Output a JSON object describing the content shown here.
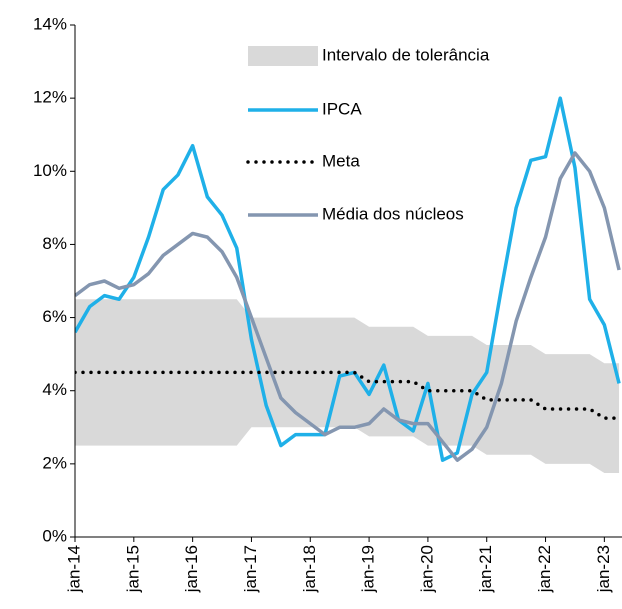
{
  "chart_data": {
    "type": "line",
    "x": [
      2014,
      2014.25,
      2014.5,
      2014.75,
      2015,
      2015.25,
      2015.5,
      2015.75,
      2016,
      2016.25,
      2016.5,
      2016.75,
      2017,
      2017.25,
      2017.5,
      2017.75,
      2018,
      2018.25,
      2018.5,
      2018.75,
      2019,
      2019.25,
      2019.5,
      2019.75,
      2020,
      2020.25,
      2020.5,
      2020.75,
      2021,
      2021.25,
      2021.5,
      2021.75,
      2022,
      2022.25,
      2022.5,
      2022.75,
      2023,
      2023.25
    ],
    "band": {
      "name": "Intervalo de tolerância",
      "color": "#d9d9d9",
      "low": [
        2.5,
        2.5,
        2.5,
        2.5,
        2.5,
        2.5,
        2.5,
        2.5,
        2.5,
        2.5,
        2.5,
        2.5,
        3,
        3,
        3,
        3,
        3,
        3,
        3,
        3,
        2.75,
        2.75,
        2.75,
        2.75,
        2.5,
        2.5,
        2.5,
        2.5,
        2.25,
        2.25,
        2.25,
        2.25,
        2,
        2,
        2,
        2,
        1.75,
        1.75
      ],
      "high": [
        6.5,
        6.5,
        6.5,
        6.5,
        6.5,
        6.5,
        6.5,
        6.5,
        6.5,
        6.5,
        6.5,
        6.5,
        6,
        6,
        6,
        6,
        6,
        6,
        6,
        6,
        5.75,
        5.75,
        5.75,
        5.75,
        5.5,
        5.5,
        5.5,
        5.5,
        5.25,
        5.25,
        5.25,
        5.25,
        5,
        5,
        5,
        5,
        4.75,
        4.75
      ]
    },
    "series": [
      {
        "name": "IPCA",
        "color": "#1fb0e8",
        "style": "solid",
        "values": [
          5.6,
          6.3,
          6.6,
          6.5,
          7.1,
          8.2,
          9.5,
          9.9,
          10.7,
          9.3,
          8.8,
          7.9,
          5.4,
          3.6,
          2.5,
          2.8,
          2.8,
          2.8,
          4.4,
          4.5,
          3.9,
          4.7,
          3.2,
          2.9,
          4.2,
          2.1,
          2.3,
          3.9,
          4.5,
          6.8,
          9.0,
          10.3,
          10.4,
          12.0,
          10.1,
          6.5,
          5.8,
          4.2
        ]
      },
      {
        "name": "Meta",
        "color": "#000000",
        "style": "dotted",
        "values": [
          4.5,
          4.5,
          4.5,
          4.5,
          4.5,
          4.5,
          4.5,
          4.5,
          4.5,
          4.5,
          4.5,
          4.5,
          4.5,
          4.5,
          4.5,
          4.5,
          4.5,
          4.5,
          4.5,
          4.5,
          4.25,
          4.25,
          4.25,
          4.25,
          4,
          4,
          4,
          4,
          3.75,
          3.75,
          3.75,
          3.75,
          3.5,
          3.5,
          3.5,
          3.5,
          3.25,
          3.25
        ]
      },
      {
        "name": "Média dos núcleos",
        "color": "#8496b0",
        "style": "solid",
        "values": [
          6.6,
          6.9,
          7.0,
          6.8,
          6.9,
          7.2,
          7.7,
          8.0,
          8.3,
          8.2,
          7.8,
          7.1,
          6.0,
          4.9,
          3.8,
          3.4,
          3.1,
          2.8,
          3.0,
          3.0,
          3.1,
          3.5,
          3.2,
          3.1,
          3.1,
          2.6,
          2.1,
          2.4,
          3.0,
          4.2,
          5.9,
          7.1,
          8.2,
          9.8,
          10.5,
          10.0,
          9.0,
          7.3
        ]
      }
    ],
    "xlim": [
      2014,
      2023.3
    ],
    "xticks": [
      {
        "value": 2014,
        "label": "jan-14"
      },
      {
        "value": 2015,
        "label": "jan-15"
      },
      {
        "value": 2016,
        "label": "jan-16"
      },
      {
        "value": 2017,
        "label": "jan-17"
      },
      {
        "value": 2018,
        "label": "jan-18"
      },
      {
        "value": 2019,
        "label": "jan-19"
      },
      {
        "value": 2020,
        "label": "jan-20"
      },
      {
        "value": 2021,
        "label": "jan-21"
      },
      {
        "value": 2022,
        "label": "jan-22"
      },
      {
        "value": 2023,
        "label": "jan-23"
      }
    ],
    "ylim": [
      0,
      14
    ],
    "yticks": [
      {
        "value": 0,
        "label": "0%"
      },
      {
        "value": 2,
        "label": "2%"
      },
      {
        "value": 4,
        "label": "4%"
      },
      {
        "value": 6,
        "label": "6%"
      },
      {
        "value": 8,
        "label": "8%"
      },
      {
        "value": 10,
        "label": "10%"
      },
      {
        "value": 12,
        "label": "12%"
      },
      {
        "value": 14,
        "label": "14%"
      }
    ]
  }
}
